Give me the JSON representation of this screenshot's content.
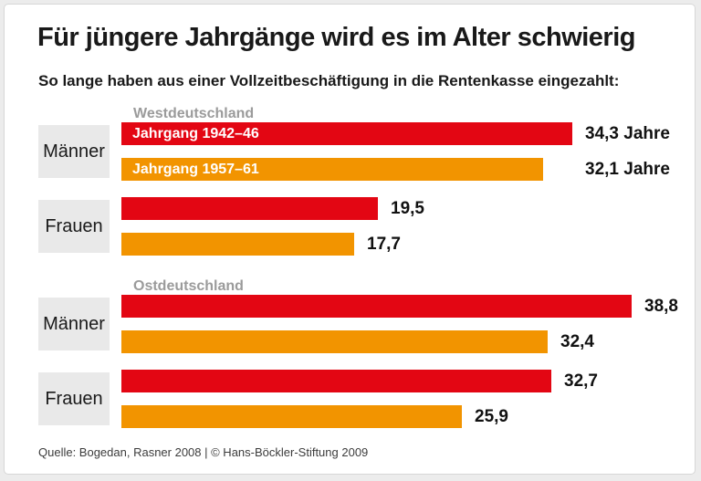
{
  "chart_data": {
    "type": "bar",
    "orientation": "horizontal",
    "title": "Für jüngere Jahrgänge wird es im Alter schwierig",
    "subtitle": "So lange haben aus einer Vollzeitbeschäftigung in die Rentenkasse eingezahlt:",
    "source": "Quelle: Bogedan, Rasner 2008 | © Hans-Böckler-Stiftung 2009",
    "unit": "Jahre",
    "x_range": [
      0,
      40
    ],
    "grid": false,
    "legend_position": "inside-first-bars",
    "series": [
      {
        "name": "Jahrgang 1942–46",
        "color": "#E30613"
      },
      {
        "name": "Jahrgang 1957–61",
        "color": "#F29400"
      }
    ],
    "sections": [
      {
        "label": "Westdeutschland",
        "groups": [
          {
            "category": "Männer",
            "values": [
              34.3,
              32.1
            ],
            "value_labels": [
              "34,3 Jahre",
              "32,1 Jahre"
            ],
            "show_series_labels": true,
            "align_value_labels": true
          },
          {
            "category": "Frauen",
            "values": [
              19.5,
              17.7
            ],
            "value_labels": [
              "19,5",
              "17,7"
            ],
            "show_series_labels": false,
            "align_value_labels": false
          }
        ]
      },
      {
        "label": "Ostdeutschland",
        "groups": [
          {
            "category": "Männer",
            "values": [
              38.8,
              32.4
            ],
            "value_labels": [
              "38,8",
              "32,4"
            ],
            "show_series_labels": false,
            "align_value_labels": false
          },
          {
            "category": "Frauen",
            "values": [
              32.7,
              25.9
            ],
            "value_labels": [
              "32,7",
              "25,9"
            ],
            "show_series_labels": false,
            "align_value_labels": false
          }
        ]
      }
    ],
    "colors": {
      "red": "#E30613",
      "orange": "#F29400",
      "category_box": "#E9E9E9",
      "section_label": "#9B9B9B",
      "card_background": "#FFFFFF",
      "page_background": "#ECECEC"
    }
  }
}
